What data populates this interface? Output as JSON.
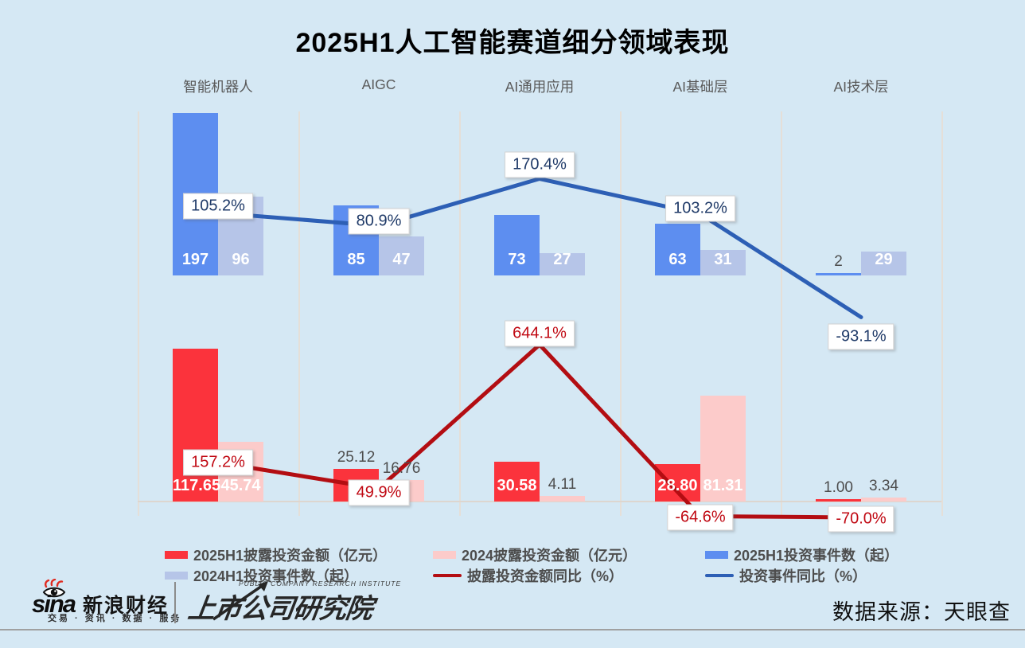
{
  "title": "2025H1人工智能赛道细分领域表现",
  "source": "数据来源：天眼查",
  "colors": {
    "background": "#d5e8f4",
    "red_bar": "#fb333c",
    "pink_bar": "#fccbca",
    "blue_bar": "#5d8ef0",
    "light_blue_bar": "#b6c5e8",
    "red_line": "#b30d12",
    "blue_line": "#2d5fb5",
    "red_label_text": "#c00812",
    "blue_label_text": "#1f3a68",
    "grid": "#e5dfd8",
    "axis_baseline": "#ddd6cf",
    "gray_text": "#595959"
  },
  "chart_data": {
    "type": "grouped-bar+line combo (dual panel: counts top, amounts bottom)",
    "categories": [
      "智能机器人",
      "AIGC",
      "AI通用应用",
      "AI基础层",
      "AI技术层"
    ],
    "legend_position": "bottom",
    "grid": "vertical category separators only",
    "series": [
      {
        "id": "amount_2025",
        "name": "2025H1披露投资金额（亿元）",
        "type": "bar",
        "panel": "bottom",
        "colorKey": "red_bar",
        "values": [
          117.65,
          25.12,
          30.58,
          28.8,
          1.0
        ],
        "labels": [
          "117.65",
          "25.12",
          "30.58",
          "28.80",
          "1.00"
        ]
      },
      {
        "id": "amount_2024",
        "name": "2024披露投资金额（亿元）",
        "type": "bar",
        "panel": "bottom",
        "colorKey": "pink_bar",
        "values": [
          45.74,
          16.76,
          4.11,
          81.31,
          3.34
        ],
        "labels": [
          "45.74",
          "16.76",
          "4.11",
          "81.31",
          "3.34"
        ]
      },
      {
        "id": "events_2025",
        "name": "2025H1投资事件数（起）",
        "type": "bar",
        "panel": "top",
        "colorKey": "blue_bar",
        "values": [
          197,
          85,
          73,
          63,
          2
        ],
        "labels": [
          "197",
          "85",
          "73",
          "63",
          "2"
        ]
      },
      {
        "id": "events_2024",
        "name": "2024H1投资事件数（起）",
        "type": "bar",
        "panel": "top",
        "colorKey": "light_blue_bar",
        "values": [
          96,
          47,
          27,
          31,
          29
        ],
        "labels": [
          "96",
          "47",
          "27",
          "31",
          "29"
        ]
      },
      {
        "id": "amount_yoy",
        "name": "披露投资金额同比（%）",
        "type": "line",
        "colorKey": "red_line",
        "labelColorKey": "red_label_text",
        "values": [
          157.2,
          49.9,
          644.1,
          -64.6,
          -70.0
        ],
        "labels": [
          "157.2%",
          "49.9%",
          "644.1%",
          "-64.6%",
          "-70.0%"
        ]
      },
      {
        "id": "events_yoy",
        "name": "投资事件同比（%）",
        "type": "line",
        "colorKey": "blue_line",
        "labelColorKey": "blue_label_text",
        "values": [
          105.2,
          80.9,
          170.4,
          103.2,
          -93.1
        ],
        "labels": [
          "105.2%",
          "80.9%",
          "170.4%",
          "103.2%",
          "-93.1%"
        ]
      }
    ]
  },
  "legend": {
    "rows": [
      [
        "amount_2025",
        "amount_2024",
        "events_2025"
      ],
      [
        "events_2024",
        "amount_yoy",
        "events_yoy"
      ]
    ]
  },
  "footer": {
    "sina_latin": "sina",
    "sina_cn": "新浪财经",
    "tagline": "交易 · 资讯 · 数据 · 服务",
    "institute_en": "PUBLIC COMPANY RESEARCH INSTITUTE",
    "institute_cn": "上市公司研究院"
  }
}
